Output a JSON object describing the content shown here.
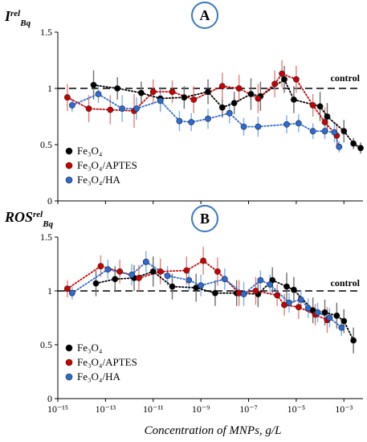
{
  "colors": {
    "fe3o4": "#000000",
    "fe3o4_aptes": "#cc0000",
    "fe3o4_ha": "#2a6bd6",
    "err_fe3o4": "#6e6e6e",
    "err_aptes": "#e08080",
    "err_ha": "#7aaef0",
    "badge": "#3a78c4"
  },
  "figure": {
    "xlabel": "Concentration of  MNPs, g/L",
    "xticks": [
      {
        "exp": -15,
        "label": "10⁻¹⁵"
      },
      {
        "exp": -13,
        "label": "10⁻¹³"
      },
      {
        "exp": -11,
        "label": "10⁻¹¹"
      },
      {
        "exp": -9,
        "label": "10⁻⁹"
      },
      {
        "exp": -7,
        "label": "10⁻⁷"
      },
      {
        "exp": -5,
        "label": "10⁻⁵"
      },
      {
        "exp": -3,
        "label": "10⁻³"
      }
    ]
  },
  "chart_data": [
    {
      "type": "scatter",
      "panel": "A",
      "ylabel_main": "I",
      "ylabel_sup": "rel",
      "ylabel_sub": "Bq",
      "xscale": "log",
      "xlim_exp": [
        -15,
        -2.2
      ],
      "ylim": [
        0,
        1.5
      ],
      "yticks": [
        "0",
        "0.5",
        "1",
        "1.5"
      ],
      "reference_line": {
        "y": 1,
        "label": "control"
      },
      "legend": [
        "Fe3O4",
        "Fe3O4/APTES",
        "Fe3O4/HA"
      ],
      "legend_placement": "bottom-left",
      "series": [
        {
          "name": "Fe3O4",
          "key": "fe3o4",
          "x_exp": [
            -13.5,
            -12.5,
            -11.5,
            -10.7,
            -9.7,
            -8.7,
            -8.1,
            -7.6,
            -6.9,
            -6.5,
            -5.5,
            -5.1,
            -4.0,
            -3.7,
            -3.0,
            -2.6,
            -2.3
          ],
          "y": [
            1.03,
            1.0,
            0.96,
            0.91,
            0.92,
            0.97,
            0.83,
            0.87,
            0.95,
            0.93,
            1.08,
            0.9,
            0.84,
            0.75,
            0.62,
            0.51,
            0.47
          ],
          "err": [
            0.13,
            0.1,
            0.1,
            0.1,
            0.1,
            0.11,
            0.09,
            0.1,
            0.14,
            0.13,
            0.12,
            0.12,
            0.13,
            0.12,
            0.1,
            0.05,
            0.05
          ]
        },
        {
          "name": "Fe3O4/APTES",
          "key": "fe3o4_aptes",
          "x_exp": [
            -14.6,
            -13.7,
            -12.8,
            -11.8,
            -11.0,
            -10.2,
            -9.3,
            -8.1,
            -7.4,
            -6.6,
            -5.9,
            -5.6,
            -5.0,
            -4.3,
            -3.8,
            -3.3
          ],
          "y": [
            0.92,
            0.82,
            0.81,
            0.8,
            0.97,
            0.97,
            0.9,
            1.02,
            1.0,
            0.91,
            1.04,
            1.13,
            1.08,
            0.85,
            0.7,
            0.58
          ],
          "err": [
            0.12,
            0.12,
            0.13,
            0.15,
            0.11,
            0.1,
            0.12,
            0.12,
            0.12,
            0.13,
            0.12,
            0.12,
            0.12,
            0.1,
            0.13,
            0.11
          ]
        },
        {
          "name": "Fe3O4/HA",
          "key": "fe3o4_ha",
          "x_exp": [
            -14.4,
            -13.3,
            -12.3,
            -11.7,
            -10.7,
            -9.9,
            -9.4,
            -8.7,
            -7.8,
            -7.2,
            -6.6,
            -5.4,
            -4.9,
            -4.3,
            -3.8,
            -3.4,
            -3.2
          ],
          "y": [
            0.85,
            0.95,
            0.82,
            0.82,
            0.89,
            0.71,
            0.7,
            0.73,
            0.78,
            0.66,
            0.66,
            0.68,
            0.69,
            0.62,
            0.62,
            0.61,
            0.48
          ],
          "err": [
            0.06,
            0.08,
            0.12,
            0.1,
            0.1,
            0.09,
            0.08,
            0.09,
            0.09,
            0.08,
            0.09,
            0.08,
            0.08,
            0.07,
            0.07,
            0.09,
            0.05
          ]
        }
      ]
    },
    {
      "type": "scatter",
      "panel": "B",
      "ylabel_main": "ROS",
      "ylabel_sup": "rel",
      "ylabel_sub": "Bq",
      "xscale": "log",
      "xlim_exp": [
        -15,
        -2.2
      ],
      "ylim": [
        0,
        1.5
      ],
      "yticks": [
        "0",
        "0.5",
        "1",
        "1.5"
      ],
      "reference_line": {
        "y": 1,
        "label": "control"
      },
      "legend": [
        "Fe3O4",
        "Fe3O4/APTES",
        "Fe3O4/HA"
      ],
      "legend_placement": "bottom-left",
      "series": [
        {
          "name": "Fe3O4",
          "key": "fe3o4",
          "x_exp": [
            -13.4,
            -12.6,
            -11.8,
            -11.0,
            -10.2,
            -9.2,
            -8.4,
            -7.5,
            -6.6,
            -6.0,
            -5.4,
            -5.1,
            -4.3,
            -3.8,
            -3.3,
            -3.0,
            -2.6
          ],
          "y": [
            1.07,
            1.11,
            1.12,
            1.18,
            1.04,
            1.03,
            0.98,
            0.98,
            0.97,
            1.1,
            1.04,
            1.01,
            0.82,
            0.8,
            0.77,
            0.72,
            0.54
          ],
          "err": [
            0.12,
            0.12,
            0.12,
            0.14,
            0.12,
            0.13,
            0.12,
            0.12,
            0.12,
            0.12,
            0.13,
            0.12,
            0.12,
            0.12,
            0.12,
            0.11,
            0.12
          ]
        },
        {
          "name": "Fe3O4/APTES",
          "key": "fe3o4_aptes",
          "x_exp": [
            -14.6,
            -13.2,
            -12.4,
            -11.6,
            -10.7,
            -9.6,
            -8.9,
            -8.3,
            -7.4,
            -6.7,
            -5.8,
            -5.5,
            -4.9,
            -4.2,
            -3.7
          ],
          "y": [
            1.02,
            1.23,
            1.18,
            1.12,
            1.18,
            1.19,
            1.28,
            1.18,
            0.98,
            1.0,
            0.96,
            0.87,
            0.85,
            0.78,
            0.73
          ],
          "err": [
            0.08,
            0.1,
            0.11,
            0.12,
            0.12,
            0.13,
            0.13,
            0.13,
            0.12,
            0.13,
            0.1,
            0.1,
            0.11,
            0.1,
            0.12
          ]
        },
        {
          "name": "Fe3O4/HA",
          "key": "fe3o4_ha",
          "x_exp": [
            -14.4,
            -12.9,
            -11.9,
            -11.3,
            -10.4,
            -9.5,
            -9.0,
            -8.0,
            -7.2,
            -6.5,
            -6.1,
            -5.3,
            -4.8,
            -4.5,
            -4.1,
            -3.6,
            -3.1
          ],
          "y": [
            0.98,
            1.2,
            1.15,
            1.27,
            1.14,
            1.1,
            1.05,
            1.11,
            0.97,
            1.1,
            1.06,
            0.89,
            0.92,
            0.84,
            0.8,
            0.75,
            0.66
          ],
          "err": [
            0.06,
            0.09,
            0.1,
            0.1,
            0.09,
            0.1,
            0.1,
            0.1,
            0.11,
            0.09,
            0.09,
            0.09,
            0.09,
            0.09,
            0.09,
            0.09,
            0.08
          ]
        }
      ]
    }
  ]
}
